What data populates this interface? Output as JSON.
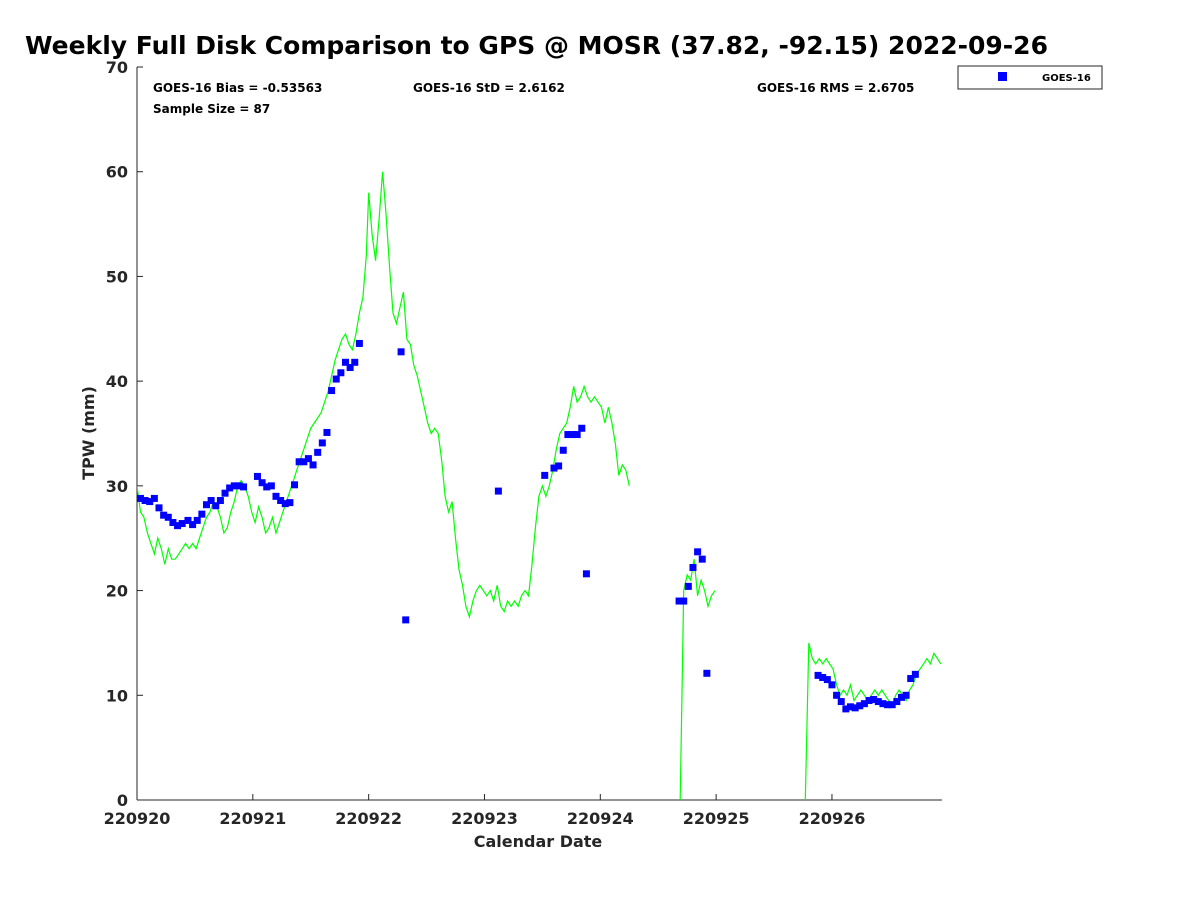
{
  "chart_data": {
    "type": "line+scatter",
    "title": "Weekly Full Disk Comparison to GPS @ MOSR (37.82, -92.15) 2022-09-26",
    "xlabel": "Calendar Date",
    "ylabel": "TPW (mm)",
    "xlim": [
      0,
      6.95
    ],
    "ylim": [
      0,
      70
    ],
    "x_ticks": [
      0,
      1,
      2,
      3,
      4,
      5,
      6
    ],
    "x_tick_labels": [
      "220920",
      "220921",
      "220922",
      "220923",
      "220924",
      "220925",
      "220926"
    ],
    "y_ticks": [
      0,
      10,
      20,
      30,
      40,
      50,
      60,
      70
    ],
    "y_tick_labels": [
      "0",
      "10",
      "20",
      "30",
      "40",
      "50",
      "60",
      "70"
    ],
    "legend_position": "top-right, outside plot",
    "stats": {
      "bias": "GOES-16 Bias = -0.53563",
      "std": "GOES-16 StD = 2.6162",
      "rms": "GOES-16 RMS = 2.6705",
      "sample": "Sample Size = 87"
    },
    "series": [
      {
        "name": "GPS",
        "type": "line",
        "color": "#00ff00",
        "x": [
          0.0,
          0.03,
          0.06,
          0.09,
          0.12,
          0.15,
          0.18,
          0.21,
          0.24,
          0.27,
          0.3,
          0.33,
          0.36,
          0.39,
          0.42,
          0.45,
          0.48,
          0.51,
          0.54,
          0.57,
          0.6,
          0.63,
          0.66,
          0.69,
          0.72,
          0.75,
          0.78,
          0.81,
          0.84,
          0.87,
          0.9,
          0.93,
          0.96,
          0.99,
          1.02,
          1.05,
          1.08,
          1.11,
          1.14,
          1.17,
          1.2,
          1.23,
          1.26,
          1.29,
          1.32,
          1.35,
          1.38,
          1.41,
          1.44,
          1.47,
          1.5,
          1.53,
          1.56,
          1.59,
          1.62,
          1.65,
          1.68,
          1.71,
          1.74,
          1.77,
          1.8,
          1.83,
          1.86,
          1.89,
          1.92,
          1.95,
          1.98,
          2.0,
          2.03,
          2.06,
          2.09,
          2.12,
          2.15,
          2.18,
          2.21,
          2.24,
          2.27,
          2.3,
          2.33,
          2.36,
          2.39,
          2.42,
          2.45,
          2.48,
          2.51,
          2.54,
          2.57,
          2.6,
          2.63,
          2.66,
          2.69,
          2.72,
          2.75,
          2.78,
          2.81,
          2.84,
          2.87,
          2.9,
          2.93,
          2.96,
          2.99,
          3.02,
          3.05,
          3.08,
          3.11,
          3.14,
          3.17,
          3.2,
          3.23,
          3.26,
          3.29,
          3.32,
          3.35,
          3.38,
          3.41,
          3.44,
          3.47,
          3.5,
          3.53,
          3.56,
          3.59,
          3.62,
          3.65,
          3.68,
          3.71,
          3.74,
          3.77,
          3.8,
          3.83,
          3.86,
          3.89,
          3.92,
          3.95,
          3.98,
          4.01,
          4.04,
          4.07,
          4.1,
          4.13,
          4.16,
          4.19,
          4.22,
          4.25,
          null,
          4.63,
          4.66,
          4.69,
          4.72,
          4.75,
          4.78,
          4.81,
          4.84,
          4.87,
          4.9,
          4.93,
          4.96,
          4.99,
          null,
          5.71,
          5.74,
          5.77,
          5.8,
          5.83,
          5.86,
          5.89,
          5.92,
          5.95,
          5.98,
          6.01,
          6.04,
          6.07,
          6.1,
          6.13,
          6.16,
          6.19,
          6.22,
          6.25,
          6.28,
          6.31,
          6.34,
          6.37,
          6.4,
          6.43,
          6.46,
          6.49,
          6.52,
          6.55,
          6.58,
          6.61,
          6.64,
          6.67,
          6.7,
          6.73,
          6.76,
          6.79,
          6.82,
          6.85,
          6.88,
          6.91,
          6.94
        ],
        "y": [
          30.0,
          27.5,
          27.0,
          25.5,
          24.5,
          23.5,
          25.0,
          24.0,
          22.5,
          24.0,
          23.0,
          23.0,
          23.5,
          24.0,
          24.5,
          24.0,
          24.5,
          24.0,
          25.0,
          26.0,
          27.0,
          27.5,
          28.5,
          28.0,
          27.0,
          25.5,
          26.0,
          27.5,
          28.5,
          30.0,
          30.5,
          30.0,
          29.0,
          27.5,
          26.5,
          28.0,
          27.0,
          25.5,
          26.0,
          27.0,
          25.5,
          26.5,
          27.5,
          28.5,
          29.5,
          30.5,
          31.5,
          32.5,
          33.5,
          34.5,
          35.5,
          36.0,
          36.5,
          37.0,
          38.0,
          39.0,
          40.5,
          42.0,
          43.0,
          44.0,
          44.5,
          43.5,
          43.0,
          44.5,
          46.5,
          48.0,
          52.0,
          58.0,
          54.0,
          51.5,
          55.5,
          60.0,
          56.0,
          51.0,
          46.5,
          45.5,
          47.0,
          48.5,
          44.0,
          43.5,
          41.5,
          40.5,
          39.0,
          37.5,
          36.0,
          35.0,
          35.5,
          35.0,
          32.5,
          29.0,
          27.5,
          28.5,
          25.0,
          22.0,
          20.5,
          18.5,
          17.5,
          19.0,
          20.0,
          20.5,
          20.0,
          19.5,
          20.0,
          19.0,
          20.5,
          18.5,
          18.0,
          19.0,
          18.5,
          19.0,
          18.5,
          19.5,
          20.0,
          19.5,
          22.5,
          26.0,
          29.0,
          30.0,
          29.0,
          30.0,
          31.5,
          33.5,
          35.0,
          35.5,
          36.0,
          37.5,
          39.5,
          38.0,
          38.5,
          39.5,
          38.5,
          38.0,
          38.5,
          38.0,
          37.5,
          36.0,
          37.5,
          36.0,
          34.0,
          31.0,
          32.0,
          31.5,
          30.0,
          27.0,
          0.0,
          null,
          0.0,
          20.0,
          21.5,
          21.0,
          23.0,
          19.5,
          21.0,
          20.0,
          18.5,
          19.5,
          20.0,
          19.0,
          0.0,
          null,
          0.0,
          15.0,
          13.5,
          13.0,
          13.5,
          13.0,
          13.5,
          13.0,
          12.5,
          11.0,
          10.0,
          10.5,
          10.0,
          11.0,
          9.5,
          10.0,
          10.5,
          10.0,
          9.5,
          10.0,
          10.5,
          10.0,
          10.5,
          10.0,
          9.5,
          9.0,
          10.0,
          10.5,
          10.0,
          9.5,
          10.5,
          11.0,
          12.0,
          12.5,
          13.0,
          13.5,
          13.0,
          14.0,
          13.5,
          13.0
        ]
      },
      {
        "name": "GOES-16",
        "type": "scatter",
        "color": "#0000ff",
        "marker": "square",
        "x": [
          0.03,
          0.07,
          0.11,
          0.15,
          0.19,
          0.23,
          0.27,
          0.31,
          0.35,
          0.39,
          0.44,
          0.48,
          0.52,
          0.56,
          0.6,
          0.64,
          0.68,
          0.72,
          0.76,
          0.8,
          0.84,
          0.88,
          0.92,
          1.04,
          1.08,
          1.12,
          1.16,
          1.2,
          1.24,
          1.28,
          1.32,
          1.36,
          1.4,
          1.44,
          1.48,
          1.52,
          1.56,
          1.6,
          1.64,
          1.68,
          1.72,
          1.76,
          1.8,
          1.84,
          1.88,
          1.92,
          2.28,
          2.32,
          3.12,
          3.52,
          3.6,
          3.64,
          3.68,
          3.72,
          3.76,
          3.8,
          3.84,
          3.88,
          4.68,
          4.72,
          4.76,
          4.8,
          4.84,
          4.88,
          4.92,
          5.88,
          5.92,
          5.96,
          6.0,
          6.04,
          6.08,
          6.12,
          6.16,
          6.2,
          6.24,
          6.28,
          6.32,
          6.36,
          6.4,
          6.44,
          6.48,
          6.52,
          6.56,
          6.6,
          6.64,
          6.68,
          6.72
        ],
        "y": [
          28.8,
          28.6,
          28.5,
          28.8,
          27.9,
          27.2,
          27.0,
          26.5,
          26.2,
          26.4,
          26.7,
          26.3,
          26.7,
          27.3,
          28.2,
          28.6,
          28.1,
          28.6,
          29.3,
          29.8,
          30.0,
          30.0,
          29.9,
          30.9,
          30.3,
          29.9,
          30.0,
          29.0,
          28.6,
          28.3,
          28.4,
          30.1,
          32.3,
          32.3,
          32.6,
          32.0,
          33.2,
          34.1,
          35.1,
          39.1,
          40.2,
          40.8,
          41.8,
          41.3,
          41.8,
          43.6,
          42.8,
          17.2,
          29.5,
          31.0,
          31.7,
          31.9,
          33.4,
          34.9,
          34.9,
          34.9,
          35.5,
          21.6,
          19.0,
          19.0,
          20.4,
          22.2,
          23.7,
          23.0,
          12.1,
          11.9,
          11.7,
          11.5,
          11.0,
          10.0,
          9.4,
          8.7,
          8.9,
          8.8,
          9.0,
          9.2,
          9.5,
          9.6,
          9.4,
          9.2,
          9.1,
          9.1,
          9.4,
          9.8,
          10.0,
          11.6,
          12.0
        ]
      }
    ],
    "legend": [
      {
        "label": "GOES-16",
        "color": "#0000ff",
        "marker": "square"
      }
    ]
  }
}
